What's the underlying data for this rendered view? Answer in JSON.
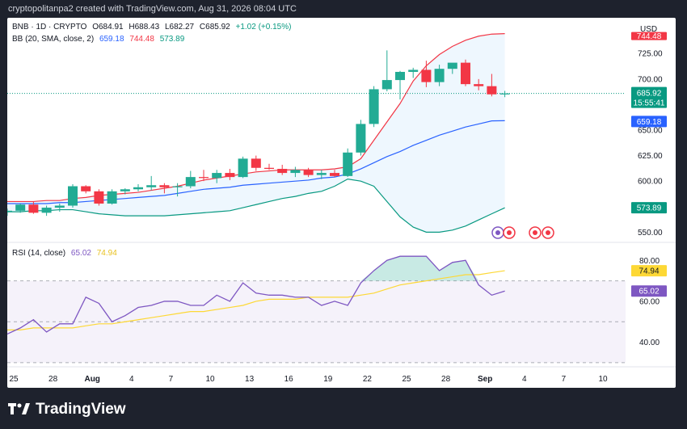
{
  "header": {
    "text": "cryptopolitanpa2 created with TradingView.com, Aug 31, 2026 08:04 UTC"
  },
  "colors": {
    "up": "#22ab94",
    "down": "#f23645",
    "bb_basis": "#2962ff",
    "bb_upper": "#f23645",
    "bb_lower": "#089981",
    "rsi": "#7e57c2",
    "rsi_ma": "#fdd835",
    "fill": "#2196f3"
  },
  "legend": {
    "line1": {
      "prefix": "BNB · 1D · CRYPTO",
      "o": "O684.91",
      "h": "H688.43",
      "l": "L682.27",
      "c": "C685.92",
      "chg": "+1.02 (+0.15%)"
    },
    "line2": {
      "prefix": "BB (20, SMA, close, 2)",
      "basis": "659.18",
      "upper": "744.48",
      "lower": "573.89"
    },
    "rsi": {
      "prefix": "RSI (14, close)",
      "val": "65.02",
      "ma": "74.94"
    }
  },
  "badges": {
    "currency": "USD",
    "upper": "744.48",
    "price": "685.92",
    "countdown": "15:55:41",
    "basis": "659.18",
    "lower": "573.89",
    "rsi_ma": "74.94",
    "rsi": "65.02"
  },
  "footer": {
    "brand": "TradingView"
  },
  "chart_data": [
    {
      "type": "candlestick",
      "title": "BNB · 1D · CRYPTO",
      "x_tick_labels": [
        "25",
        "28",
        "Aug",
        "4",
        "7",
        "10",
        "13",
        "16",
        "19",
        "22",
        "25",
        "28",
        "Sep",
        "4",
        "7",
        "10"
      ],
      "y_tick_labels": [
        "550.00",
        "575.00",
        "600.00",
        "625.00",
        "650.00",
        "675.00",
        "700.00",
        "725.00"
      ],
      "ylim": [
        540,
        760
      ],
      "candles": [
        {
          "o": 570,
          "h": 573,
          "l": 566,
          "c": 571
        },
        {
          "o": 571,
          "h": 578,
          "l": 569,
          "c": 577
        },
        {
          "o": 577,
          "h": 580,
          "l": 568,
          "c": 569
        },
        {
          "o": 569,
          "h": 576,
          "l": 566,
          "c": 574
        },
        {
          "o": 574,
          "h": 578,
          "l": 570,
          "c": 576
        },
        {
          "o": 576,
          "h": 597,
          "l": 574,
          "c": 595
        },
        {
          "o": 595,
          "h": 596,
          "l": 588,
          "c": 590
        },
        {
          "o": 590,
          "h": 592,
          "l": 576,
          "c": 578
        },
        {
          "o": 578,
          "h": 592,
          "l": 577,
          "c": 590
        },
        {
          "o": 590,
          "h": 593,
          "l": 587,
          "c": 592
        },
        {
          "o": 592,
          "h": 597,
          "l": 590,
          "c": 594
        },
        {
          "o": 594,
          "h": 605,
          "l": 591,
          "c": 596
        },
        {
          "o": 596,
          "h": 598,
          "l": 588,
          "c": 594
        },
        {
          "o": 594,
          "h": 598,
          "l": 585,
          "c": 595
        },
        {
          "o": 595,
          "h": 610,
          "l": 593,
          "c": 604
        },
        {
          "o": 604,
          "h": 611,
          "l": 600,
          "c": 603
        },
        {
          "o": 603,
          "h": 611,
          "l": 598,
          "c": 608
        },
        {
          "o": 608,
          "h": 612,
          "l": 601,
          "c": 604
        },
        {
          "o": 604,
          "h": 624,
          "l": 603,
          "c": 622
        },
        {
          "o": 622,
          "h": 625,
          "l": 610,
          "c": 613
        },
        {
          "o": 613,
          "h": 617,
          "l": 611,
          "c": 612
        },
        {
          "o": 612,
          "h": 616,
          "l": 606,
          "c": 608
        },
        {
          "o": 608,
          "h": 614,
          "l": 604,
          "c": 611
        },
        {
          "o": 611,
          "h": 613,
          "l": 604,
          "c": 606
        },
        {
          "o": 606,
          "h": 611,
          "l": 602,
          "c": 608
        },
        {
          "o": 608,
          "h": 611,
          "l": 604,
          "c": 605
        },
        {
          "o": 605,
          "h": 632,
          "l": 604,
          "c": 628
        },
        {
          "o": 628,
          "h": 660,
          "l": 625,
          "c": 656
        },
        {
          "o": 656,
          "h": 693,
          "l": 653,
          "c": 690
        },
        {
          "o": 690,
          "h": 728,
          "l": 688,
          "c": 699
        },
        {
          "o": 699,
          "h": 708,
          "l": 680,
          "c": 707
        },
        {
          "o": 707,
          "h": 711,
          "l": 701,
          "c": 709
        },
        {
          "o": 709,
          "h": 718,
          "l": 692,
          "c": 697
        },
        {
          "o": 697,
          "h": 714,
          "l": 693,
          "c": 710
        },
        {
          "o": 710,
          "h": 715,
          "l": 705,
          "c": 716
        },
        {
          "o": 716,
          "h": 719,
          "l": 693,
          "c": 695
        },
        {
          "o": 695,
          "h": 700,
          "l": 689,
          "c": 693
        },
        {
          "o": 693,
          "h": 705,
          "l": 683,
          "c": 685
        },
        {
          "o": 684.91,
          "h": 688.43,
          "l": 682.27,
          "c": 685.92
        }
      ],
      "series": [
        {
          "name": "BB basis",
          "values": [
            578,
            578,
            578,
            578,
            579,
            579,
            580,
            581,
            582,
            583,
            584,
            585,
            586,
            588,
            590,
            592,
            593,
            594,
            596,
            597,
            598,
            599,
            600,
            601,
            603,
            604,
            607,
            612,
            618,
            624,
            629,
            635,
            640,
            645,
            649,
            653,
            656,
            659,
            659.18
          ]
        },
        {
          "name": "BB upper",
          "values": [
            580,
            580,
            580,
            581,
            581,
            583,
            584,
            586,
            587,
            588,
            589,
            591,
            593,
            595,
            598,
            601,
            603,
            605,
            607,
            609,
            610,
            611,
            611,
            611,
            611,
            612,
            614,
            622,
            640,
            658,
            676,
            698,
            713,
            724,
            732,
            738,
            742,
            744,
            744.48
          ]
        },
        {
          "name": "BB lower",
          "values": [
            570,
            570,
            571,
            571,
            572,
            572,
            570,
            568,
            567,
            566,
            566,
            566,
            566,
            567,
            568,
            569,
            570,
            571,
            574,
            577,
            580,
            583,
            585,
            588,
            590,
            595,
            602,
            600,
            595,
            580,
            565,
            555,
            550,
            550,
            552,
            556,
            562,
            568,
            573.89
          ]
        }
      ]
    },
    {
      "type": "line",
      "title": "RSI (14, close)",
      "y_tick_labels": [
        "40.00",
        "60.00",
        "80.00"
      ],
      "ylim": [
        28,
        88
      ],
      "bands": [
        30,
        50,
        70
      ],
      "series": [
        {
          "name": "RSI",
          "values": [
            44,
            47,
            51,
            45,
            49,
            49,
            62,
            59,
            50,
            53,
            57,
            58,
            60,
            60,
            58,
            58,
            63,
            60,
            69,
            64,
            63,
            63,
            62,
            62,
            58,
            60,
            58,
            69,
            75,
            80,
            82,
            82,
            82,
            75,
            79,
            80,
            68,
            63,
            65.02
          ]
        },
        {
          "name": "MA",
          "values": [
            46,
            46,
            47,
            47,
            47,
            47,
            48,
            49,
            49,
            50,
            51,
            52,
            53,
            54,
            55,
            55,
            56,
            57,
            58,
            60,
            61,
            61,
            61,
            62,
            62,
            62,
            62,
            63,
            64,
            66,
            68,
            69,
            70,
            71,
            72,
            73,
            73,
            74,
            74.94
          ]
        }
      ]
    }
  ]
}
